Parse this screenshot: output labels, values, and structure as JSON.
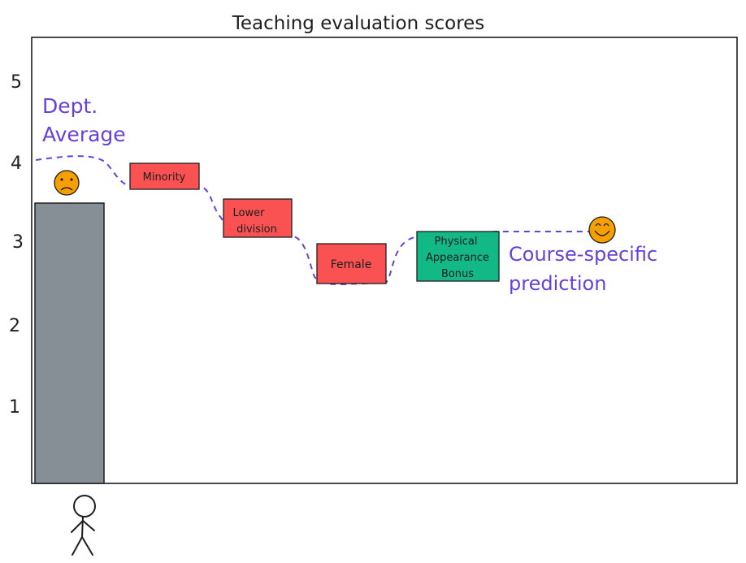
{
  "title": "Teaching evaluation scores",
  "y_ticks": [
    "1",
    "2",
    "3",
    "4",
    "5"
  ],
  "bar": {
    "value": 3.5,
    "color": "#868e96"
  },
  "labels": {
    "dept_average_line1": "Dept.",
    "dept_average_line2": "Average",
    "course_line1": "Course-specific",
    "course_line2": "prediction"
  },
  "adjustments": [
    {
      "label_lines": [
        "Minority"
      ],
      "kind": "penalty",
      "color": "#fa5252"
    },
    {
      "label_lines": [
        "Lower",
        "division"
      ],
      "kind": "penalty",
      "color": "#fa5252"
    },
    {
      "label_lines": [
        "Female"
      ],
      "kind": "penalty",
      "color": "#fa5252"
    },
    {
      "label_lines": [
        "Physical",
        "Appearance",
        "Bonus"
      ],
      "kind": "bonus",
      "color": "#12b886"
    }
  ],
  "colors": {
    "annotation": "#6741d9",
    "face": "#f59f00",
    "ink": "#1e1e1e"
  },
  "icons": {
    "sad_face": "sad-face-icon",
    "happy_face": "happy-face-icon",
    "person": "stick-figure-icon"
  }
}
